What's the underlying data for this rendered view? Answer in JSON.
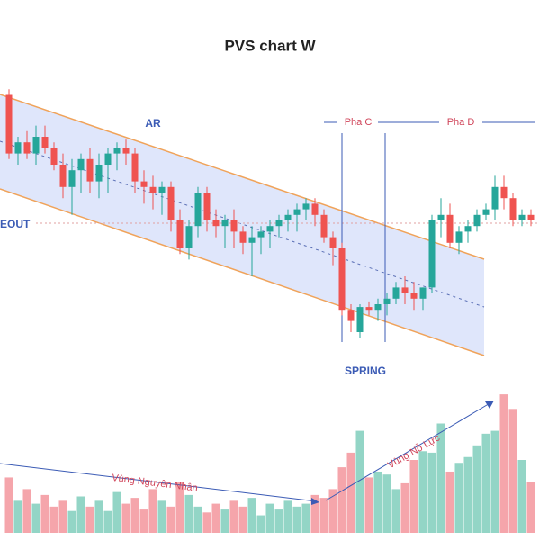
{
  "chart_data": {
    "type": "candlestick",
    "title": "PVS chart W",
    "annotations": [
      "AR",
      "Pha C",
      "Pha D",
      "EOUT",
      "SPRING",
      "Vùng Nguyên Nhân",
      "Vùng Nỗ Lực"
    ],
    "up_color": "#26a69a",
    "down_color": "#ef5350",
    "volume_up_color": "#93d5c6",
    "volume_down_color": "#f5a5ab",
    "ylim": [
      0,
      100
    ],
    "volume_ylim": [
      0,
      100
    ],
    "open": [
      95,
      74,
      78,
      74,
      80,
      76,
      70,
      62,
      68,
      72,
      64,
      70,
      74,
      76,
      74,
      64,
      62,
      60,
      62,
      50,
      40,
      48,
      60,
      50,
      48,
      50,
      46,
      42,
      44,
      46,
      48,
      50,
      52,
      54,
      56,
      52,
      44,
      40,
      18,
      10,
      19,
      18,
      20,
      22,
      26,
      24,
      22,
      26,
      50,
      52,
      42,
      46,
      48,
      52,
      54,
      62,
      58,
      50,
      52
    ],
    "high": [
      97,
      80,
      82,
      84,
      84,
      78,
      74,
      72,
      74,
      76,
      74,
      76,
      78,
      79,
      76,
      68,
      66,
      64,
      64,
      54,
      50,
      62,
      62,
      54,
      52,
      54,
      48,
      48,
      48,
      50,
      52,
      54,
      56,
      58,
      58,
      54,
      46,
      42,
      20,
      20,
      21,
      22,
      24,
      28,
      30,
      28,
      26,
      52,
      58,
      56,
      48,
      50,
      54,
      56,
      66,
      66,
      60,
      54,
      54
    ],
    "low": [
      72,
      70,
      72,
      70,
      74,
      68,
      58,
      52,
      60,
      60,
      58,
      60,
      68,
      70,
      60,
      56,
      54,
      52,
      46,
      38,
      36,
      44,
      46,
      44,
      40,
      40,
      38,
      30,
      38,
      40,
      44,
      46,
      46,
      50,
      48,
      42,
      34,
      16,
      10,
      8,
      16,
      14,
      16,
      20,
      20,
      18,
      18,
      24,
      44,
      40,
      38,
      42,
      46,
      50,
      50,
      54,
      48,
      48,
      48
    ],
    "close": [
      74,
      78,
      74,
      80,
      76,
      70,
      62,
      68,
      72,
      64,
      70,
      74,
      76,
      74,
      64,
      62,
      60,
      62,
      50,
      40,
      48,
      60,
      50,
      48,
      50,
      46,
      42,
      44,
      46,
      48,
      50,
      52,
      54,
      56,
      52,
      44,
      40,
      18,
      14,
      19,
      18,
      20,
      22,
      26,
      24,
      22,
      26,
      50,
      52,
      42,
      46,
      48,
      52,
      54,
      62,
      58,
      50,
      52,
      50
    ],
    "volume": [
      38,
      22,
      30,
      20,
      26,
      18,
      22,
      15,
      25,
      18,
      22,
      15,
      28,
      20,
      24,
      16,
      30,
      22,
      18,
      35,
      26,
      18,
      14,
      20,
      16,
      22,
      18,
      24,
      12,
      20,
      16,
      22,
      18,
      20,
      26,
      24,
      30,
      45,
      55,
      70,
      38,
      42,
      40,
      30,
      34,
      50,
      56,
      55,
      75,
      42,
      48,
      52,
      60,
      68,
      70,
      95,
      85,
      50,
      35
    ]
  }
}
